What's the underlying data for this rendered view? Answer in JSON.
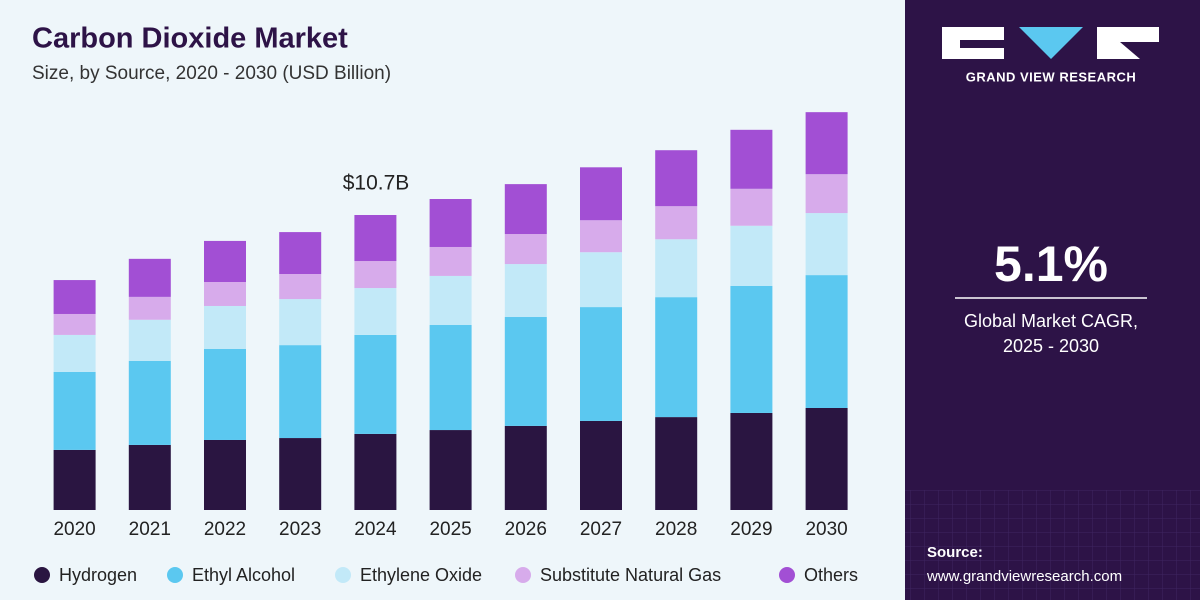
{
  "chart_data": {
    "type": "stacked_bar",
    "title": "Carbon Dioxide Market",
    "subtitle": "Size, by Source, 2020 - 2030 (USD Billion)",
    "annotation": "$10.7B",
    "categories": [
      "2020",
      "2021",
      "2022",
      "2023",
      "2024",
      "2025",
      "2026",
      "2027",
      "2028",
      "2029",
      "2030"
    ],
    "series": [
      {
        "name": "Hydrogen",
        "color": "#2a1541",
        "values": [
          2.18,
          2.36,
          2.54,
          2.61,
          2.76,
          2.9,
          3.05,
          3.23,
          3.37,
          3.52,
          3.7
        ]
      },
      {
        "name": "Ethyl Alcohol",
        "color": "#5bc8f0",
        "values": [
          2.83,
          3.05,
          3.3,
          3.37,
          3.59,
          3.81,
          3.95,
          4.13,
          4.35,
          4.61,
          4.82
        ]
      },
      {
        "name": "Ethylene Oxide",
        "color": "#c2e9f8",
        "values": [
          1.34,
          1.49,
          1.56,
          1.67,
          1.7,
          1.78,
          1.92,
          1.99,
          2.1,
          2.18,
          2.25
        ]
      },
      {
        "name": "Substitute Natural Gas",
        "color": "#d7abeb",
        "values": [
          0.76,
          0.83,
          0.87,
          0.91,
          0.98,
          1.05,
          1.09,
          1.16,
          1.2,
          1.34,
          1.41
        ]
      },
      {
        "name": "Others",
        "color": "#a24fd4",
        "values": [
          1.23,
          1.38,
          1.49,
          1.52,
          1.67,
          1.74,
          1.81,
          1.92,
          2.03,
          2.14,
          2.25
        ]
      }
    ],
    "legend": "bottom"
  },
  "side_panel": {
    "brand": "GRAND VIEW RESEARCH",
    "cagr": "5.1%",
    "cagr_label": [
      "Global Market CAGR,",
      "2025 - 2030"
    ],
    "source_label": "Source:",
    "source_url": "www.grandviewresearch.com"
  }
}
